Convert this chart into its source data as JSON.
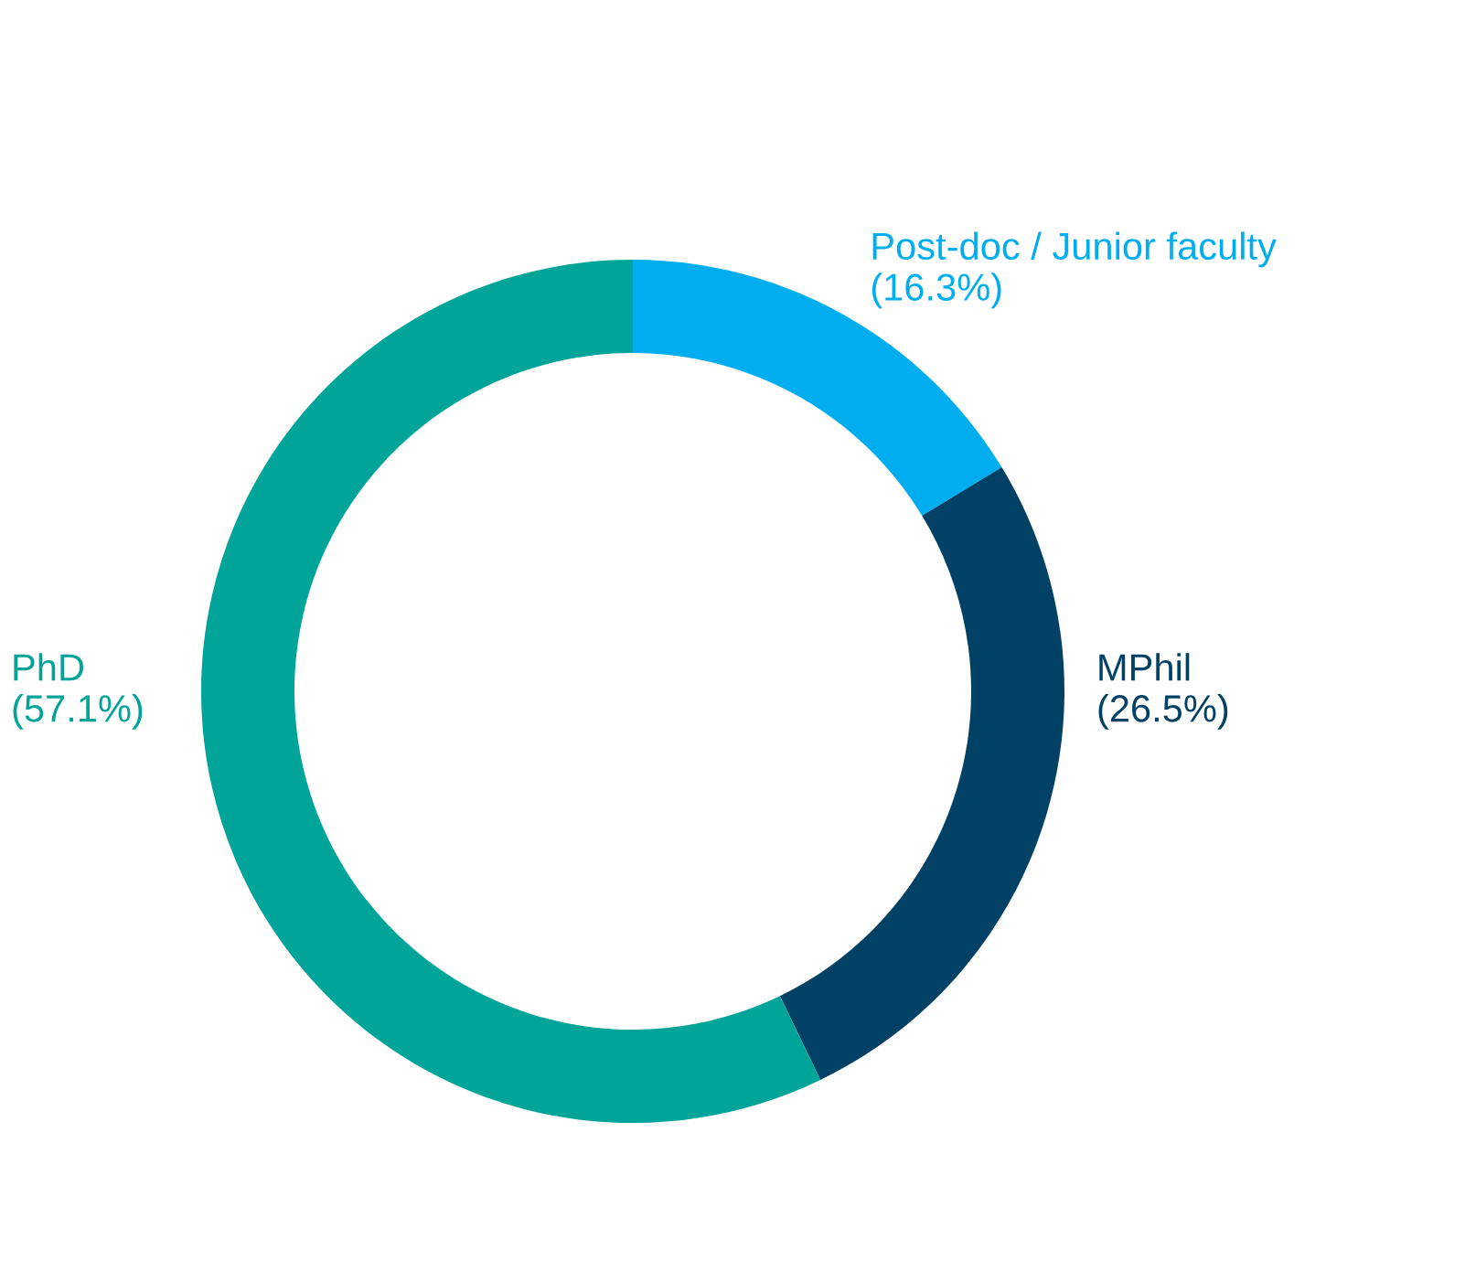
{
  "chart_data": {
    "type": "donut",
    "categories": [
      "Post-doc / Junior faculty",
      "MPhil",
      "PhD"
    ],
    "values": [
      16.3,
      26.5,
      57.1
    ],
    "value_labels": [
      "(16.3%)",
      "(26.5%)",
      "(57.1%)"
    ],
    "colors": [
      "#00aeef",
      "#004165",
      "#00a499"
    ],
    "legend": false
  }
}
